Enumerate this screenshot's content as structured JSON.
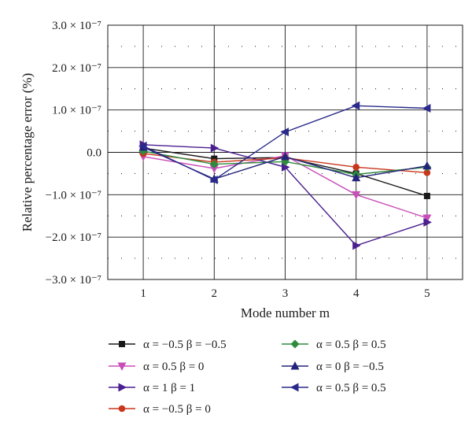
{
  "chart_data": {
    "type": "line",
    "xlabel": "Mode number m",
    "ylabel": "Relative percentage error (%)",
    "x": [
      1,
      2,
      3,
      4,
      5
    ],
    "xlim": [
      0.5,
      5.5
    ],
    "ylim": [
      -3e-07,
      3e-07
    ],
    "x_ticks": [
      1,
      2,
      3,
      4,
      5
    ],
    "y_ticks": [
      {
        "value": 3e-07,
        "label": "3.0 × 10⁻⁷"
      },
      {
        "value": 2e-07,
        "label": "2.0 × 10⁻⁷"
      },
      {
        "value": 1e-07,
        "label": "1.0 × 10⁻⁷"
      },
      {
        "value": 0,
        "label": "0.0"
      },
      {
        "value": -1e-07,
        "label": "−1.0 × 10⁻⁷"
      },
      {
        "value": -2e-07,
        "label": "−2.0 × 10⁻⁷"
      },
      {
        "value": -3e-07,
        "label": "−3.0 × 10⁻⁷"
      }
    ],
    "grid": "major solid, minor dotted",
    "legend_placement": "bottom",
    "series": [
      {
        "name": "α = −0.5 β = −0.5",
        "color": "#1a1a1a",
        "marker": "square",
        "values": [
          1e-08,
          -1.5e-08,
          -1.2e-08,
          -5e-08,
          -1.03e-07
        ]
      },
      {
        "name": "α = 0.5 β = 0",
        "color": "#c84fb8",
        "marker": "triangle-down",
        "values": [
          -1e-08,
          -3.8e-08,
          -8e-09,
          -1e-07,
          -1.55e-07
        ]
      },
      {
        "name": "α = 1 β = 1",
        "color": "#4a1f8f",
        "marker": "triangle-right",
        "values": [
          1.8e-08,
          1e-08,
          -3.5e-08,
          -2.2e-07,
          -1.65e-07
        ]
      },
      {
        "name": "α = −0.5 β = 0",
        "color": "#c8361c",
        "marker": "circle",
        "values": [
          -3e-09,
          -2.3e-08,
          -1.3e-08,
          -3.5e-08,
          -4.8e-08
        ]
      },
      {
        "name": "α = 0.5 β = 0.5",
        "color": "#2e8b3e",
        "marker": "diamond",
        "values": [
          3e-09,
          -2.8e-08,
          -2.2e-08,
          -5.2e-08,
          -3.5e-08
        ]
      },
      {
        "name": "α = 0 β = −0.5",
        "color": "#23237a",
        "marker": "triangle-up",
        "values": [
          1.2e-08,
          -6.3e-08,
          -1e-08,
          -6e-08,
          -3.2e-08
        ]
      },
      {
        "name": "α = 0.5 β = 0.5",
        "color": "#2a2a8c",
        "marker": "triangle-left",
        "values": [
          1.5e-08,
          -6.5e-08,
          4.8e-08,
          1.1e-07,
          1.04e-07
        ]
      }
    ]
  }
}
